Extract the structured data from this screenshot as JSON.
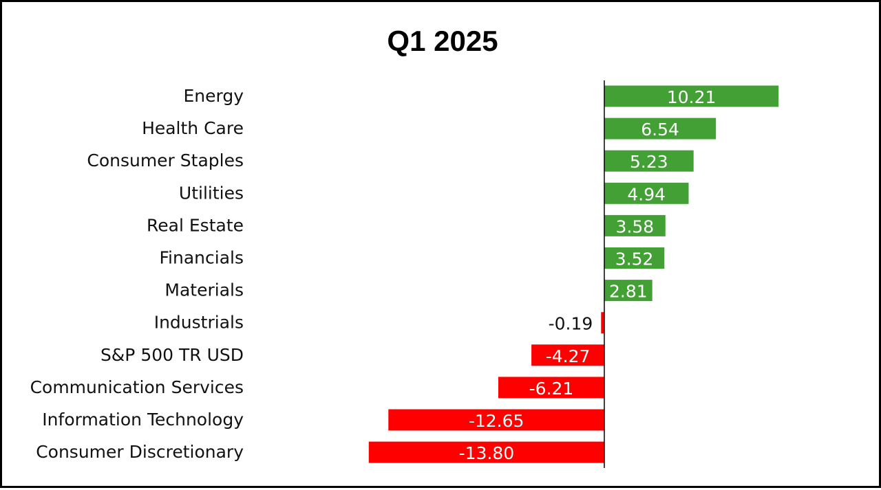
{
  "chart_data": {
    "type": "bar",
    "orientation": "horizontal",
    "title": "Q1 2025",
    "categories": [
      "Energy",
      "Health Care",
      "Consumer Staples",
      "Utilities",
      "Real Estate",
      "Financials",
      "Materials",
      "Industrials",
      "S&P 500 TR USD",
      "Communication Services",
      "Information Technology",
      "Consumer Discretionary"
    ],
    "values": [
      10.21,
      6.54,
      5.23,
      4.94,
      3.58,
      3.52,
      2.81,
      -0.19,
      -4.27,
      -6.21,
      -12.65,
      -13.8
    ],
    "value_labels": [
      "10.21",
      "6.54",
      "5.23",
      "4.94",
      "3.58",
      "3.52",
      "2.81",
      "-0.19",
      "-4.27",
      "-6.21",
      "-12.65",
      "-13.80"
    ],
    "xlim": [
      -13.8,
      10.21
    ],
    "grid": false,
    "colors": {
      "positive": "#43A035",
      "negative": "#FF0000"
    }
  }
}
